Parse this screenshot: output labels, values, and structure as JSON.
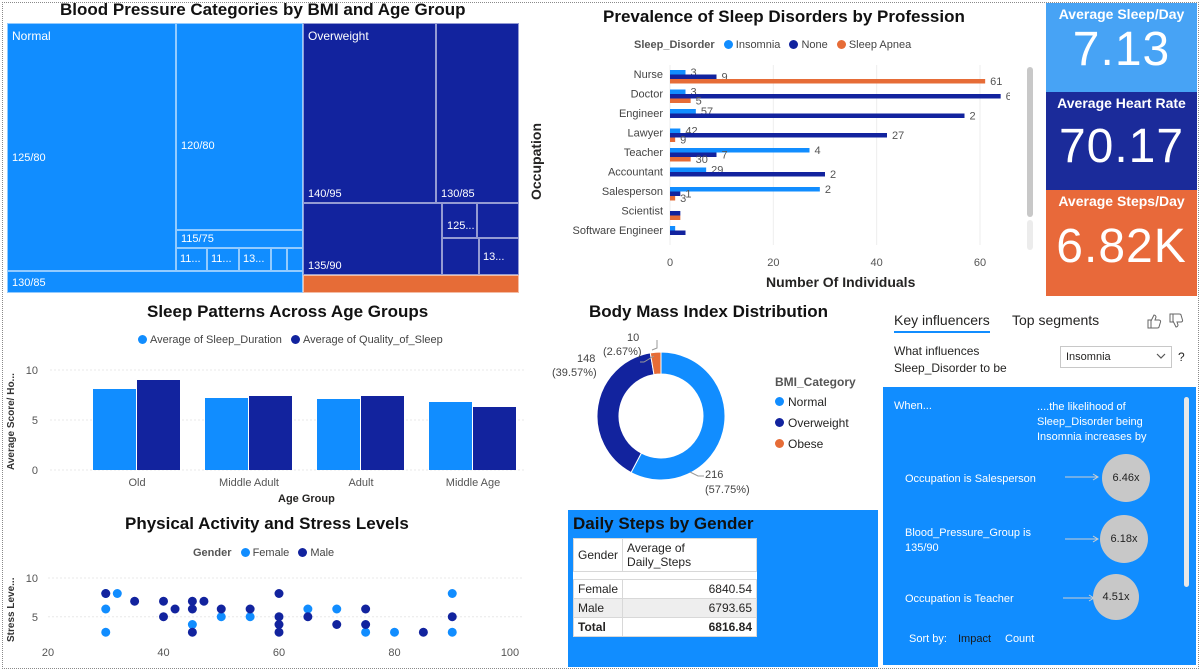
{
  "treemap": {
    "title": "Blood Pressure Categories by BMI and Age Group",
    "groups": [
      "Normal",
      "Overweight"
    ],
    "cells": [
      "125/80",
      "120/80",
      "115/75",
      "11...",
      "11...",
      "13...",
      "130/85",
      "140/95",
      "130/85",
      "125...",
      "13...",
      "135/90"
    ]
  },
  "sleep_disorders": {
    "title": "Prevalence of Sleep Disorders by Profession",
    "legend_title": "Sleep_Disorder",
    "ytitle": "Occupation",
    "xtitle": "Number Of Individuals"
  },
  "kpis": {
    "sleep_label": "Average Sleep/Day",
    "sleep_value": "7.13",
    "heart_label": "Average Heart Rate",
    "heart_value": "70.17",
    "steps_label": "Average Steps/Day",
    "steps_value": "6.82K",
    "colors": {
      "sleep": "#47a3f5",
      "heart": "#1b2b9a",
      "steps": "#e8693a"
    }
  },
  "sleep_patterns": {
    "title": "Sleep Patterns Across Age Groups",
    "ytitle": "Average Score/ Ho...",
    "xtitle": "Age Group"
  },
  "bmi": {
    "title": "Body Mass Index Distribution",
    "legend_title": "BMI_Category",
    "labels": {
      "normal_count": "216",
      "normal_pct": "(57.75%)",
      "overweight_count": "148",
      "overweight_pct": "(39.57%)",
      "obese_count": "10",
      "obese_pct": "(2.67%)"
    }
  },
  "activity": {
    "title": "Physical Activity and Stress Levels",
    "legend_title": "Gender",
    "ytitle": "Stress Leve..."
  },
  "daily_steps": {
    "title": "Daily Steps by Gender",
    "headers": [
      "Gender",
      "Average of Daily_Steps"
    ],
    "rows": [
      [
        "Female",
        "6840.54"
      ],
      [
        "Male",
        "6793.65"
      ]
    ],
    "total": [
      "Total",
      "6816.84"
    ]
  },
  "key_influencers": {
    "tabs": [
      "Key influencers",
      "Top segments"
    ],
    "question": "What influences Sleep_Disorder to be",
    "selected": "Insomnia",
    "help": "?",
    "when": "When...",
    "likelihood": "....the likelihood of Sleep_Disorder being Insomnia increases by",
    "items": [
      {
        "label": "Occupation is Salesperson",
        "value": "6.46x"
      },
      {
        "label": "Blood_Pressure_Group is 135/90",
        "value": "6.18x"
      },
      {
        "label": "Occupation is Teacher",
        "value": "4.51x"
      }
    ],
    "sort_by": "Sort by:",
    "sort_impact": "Impact",
    "sort_count": "Count"
  },
  "chart_data": [
    {
      "type": "bar",
      "orientation": "horizontal",
      "title": "Prevalence of Sleep Disorders by Profession",
      "xlabel": "Number Of Individuals",
      "ylabel": "Occupation",
      "categories": [
        "Nurse",
        "Doctor",
        "Engineer",
        "Lawyer",
        "Teacher",
        "Accountant",
        "Salesperson",
        "Scientist",
        "Software Engineer"
      ],
      "series": [
        {
          "name": "Insomnia",
          "color": "#118dff",
          "values": [
            3,
            3,
            5,
            2,
            27,
            7,
            29,
            0,
            1
          ]
        },
        {
          "name": "None",
          "color": "#12239e",
          "values": [
            9,
            64,
            57,
            42,
            9,
            30,
            2,
            2,
            3
          ]
        },
        {
          "name": "Sleep Apnea",
          "color": "#e66c37",
          "values": [
            61,
            4,
            0,
            1,
            4,
            0,
            1,
            2,
            0
          ]
        }
      ],
      "data_labels": [
        "3",
        "9",
        "61",
        "3",
        "64",
        "5",
        "57",
        "2",
        "42",
        "27",
        "9",
        "4",
        "7",
        "30",
        "29",
        "2",
        "2",
        "1",
        "3"
      ],
      "xticks": [
        "0",
        "20",
        "40",
        "60"
      ],
      "xlim": [
        0,
        70
      ],
      "legend": "top"
    },
    {
      "type": "bar",
      "title": "Sleep Patterns Across Age Groups",
      "xlabel": "Age Group",
      "ylabel": "Average Score/ Ho...",
      "categories": [
        "Old",
        "Middle Adult",
        "Adult",
        "Middle Age"
      ],
      "series": [
        {
          "name": "Average of Sleep_Duration",
          "color": "#118dff",
          "values": [
            8.1,
            7.2,
            7.1,
            6.8
          ]
        },
        {
          "name": "Average of Quality_of_Sleep",
          "color": "#12239e",
          "values": [
            9.0,
            7.4,
            7.4,
            6.3
          ]
        }
      ],
      "yticks": [
        "0",
        "5",
        "10"
      ],
      "ylim": [
        0,
        11
      ],
      "legend": "top"
    },
    {
      "type": "pie",
      "title": "Body Mass Index Distribution",
      "legend_title": "BMI_Category",
      "categories": [
        "Normal",
        "Overweight",
        "Obese"
      ],
      "values": [
        216,
        148,
        10
      ],
      "colors": [
        "#118dff",
        "#12239e",
        "#e66c37"
      ],
      "legend": "right"
    },
    {
      "type": "scatter",
      "title": "Physical Activity and Stress Levels",
      "ylabel": "Stress Leve...",
      "legend_title": "Gender",
      "series": [
        {
          "name": "Female",
          "color": "#118dff",
          "points": [
            [
              30,
              8
            ],
            [
              30,
              6
            ],
            [
              30,
              3
            ],
            [
              32,
              8
            ],
            [
              45,
              4
            ],
            [
              50,
              5
            ],
            [
              55,
              5
            ],
            [
              65,
              6
            ],
            [
              70,
              6
            ],
            [
              75,
              3
            ],
            [
              80,
              3
            ],
            [
              90,
              8
            ],
            [
              90,
              3
            ]
          ]
        },
        {
          "name": "Male",
          "color": "#12239e",
          "points": [
            [
              30,
              8
            ],
            [
              35,
              7
            ],
            [
              40,
              7
            ],
            [
              40,
              5
            ],
            [
              42,
              6
            ],
            [
              45,
              7
            ],
            [
              45,
              6
            ],
            [
              45,
              3
            ],
            [
              47,
              7
            ],
            [
              50,
              6
            ],
            [
              55,
              6
            ],
            [
              60,
              8
            ],
            [
              60,
              5
            ],
            [
              60,
              4
            ],
            [
              60,
              3
            ],
            [
              65,
              5
            ],
            [
              70,
              4
            ],
            [
              75,
              6
            ],
            [
              75,
              4
            ],
            [
              85,
              3
            ],
            [
              90,
              5
            ]
          ]
        }
      ],
      "xticks": [
        "20",
        "40",
        "60",
        "80",
        "100"
      ],
      "yticks": [
        "5",
        "10"
      ],
      "xlim": [
        20,
        100
      ],
      "ylim": [
        2,
        10
      ],
      "legend": "top"
    },
    {
      "type": "table",
      "title": "Daily Steps by Gender",
      "columns": [
        "Gender",
        "Average of Daily_Steps"
      ],
      "rows": [
        [
          "Female",
          6840.54
        ],
        [
          "Male",
          6793.65
        ],
        [
          "Total",
          6816.84
        ]
      ]
    }
  ]
}
